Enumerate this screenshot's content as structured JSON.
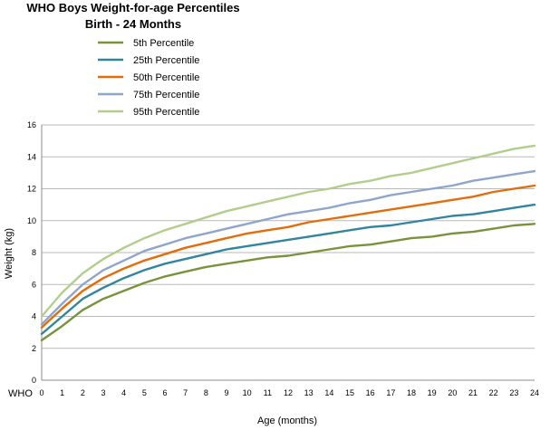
{
  "chart_data": {
    "type": "line",
    "title": "WHO Boys Weight-for-age Percentiles",
    "subtitle": "Birth - 24 Months",
    "xlabel": "Age (months)",
    "ylabel": "Weight (kg)",
    "corner_label": "WHO",
    "x": [
      0,
      1,
      2,
      3,
      4,
      5,
      6,
      7,
      8,
      9,
      10,
      11,
      12,
      13,
      14,
      15,
      16,
      17,
      18,
      19,
      20,
      21,
      22,
      23,
      24
    ],
    "xlim": [
      0,
      24
    ],
    "ylim": [
      0,
      16
    ],
    "yticks": [
      0,
      2,
      4,
      6,
      8,
      10,
      12,
      14,
      16
    ],
    "grid": true,
    "legend_position": "top-left",
    "series": [
      {
        "name": "5th  Percentile",
        "color": "#77933c",
        "values": [
          2.5,
          3.4,
          4.4,
          5.1,
          5.6,
          6.1,
          6.5,
          6.8,
          7.1,
          7.3,
          7.5,
          7.7,
          7.8,
          8.0,
          8.2,
          8.4,
          8.5,
          8.7,
          8.9,
          9.0,
          9.2,
          9.3,
          9.5,
          9.7,
          9.8
        ]
      },
      {
        "name": "25th  Percentile",
        "color": "#31859c",
        "values": [
          2.9,
          4.0,
          5.1,
          5.8,
          6.4,
          6.9,
          7.3,
          7.6,
          7.9,
          8.2,
          8.4,
          8.6,
          8.8,
          9.0,
          9.2,
          9.4,
          9.6,
          9.7,
          9.9,
          10.1,
          10.3,
          10.4,
          10.6,
          10.8,
          11.0
        ]
      },
      {
        "name": "50th  Percentile",
        "color": "#e46c0a",
        "values": [
          3.3,
          4.5,
          5.6,
          6.4,
          7.0,
          7.5,
          7.9,
          8.3,
          8.6,
          8.9,
          9.2,
          9.4,
          9.6,
          9.9,
          10.1,
          10.3,
          10.5,
          10.7,
          10.9,
          11.1,
          11.3,
          11.5,
          11.8,
          12.0,
          12.2
        ]
      },
      {
        "name": "75th  Percentile",
        "color": "#8ea5cc",
        "values": [
          3.5,
          4.8,
          6.0,
          6.9,
          7.5,
          8.1,
          8.5,
          8.9,
          9.2,
          9.5,
          9.8,
          10.1,
          10.4,
          10.6,
          10.8,
          11.1,
          11.3,
          11.6,
          11.8,
          12.0,
          12.2,
          12.5,
          12.7,
          12.9,
          13.1
        ]
      },
      {
        "name": "95th  Percentile",
        "color": "#b2cd8c",
        "values": [
          4.0,
          5.5,
          6.7,
          7.6,
          8.3,
          8.9,
          9.4,
          9.8,
          10.2,
          10.6,
          10.9,
          11.2,
          11.5,
          11.8,
          12.0,
          12.3,
          12.5,
          12.8,
          13.0,
          13.3,
          13.6,
          13.9,
          14.2,
          14.5,
          14.7
        ]
      }
    ]
  }
}
